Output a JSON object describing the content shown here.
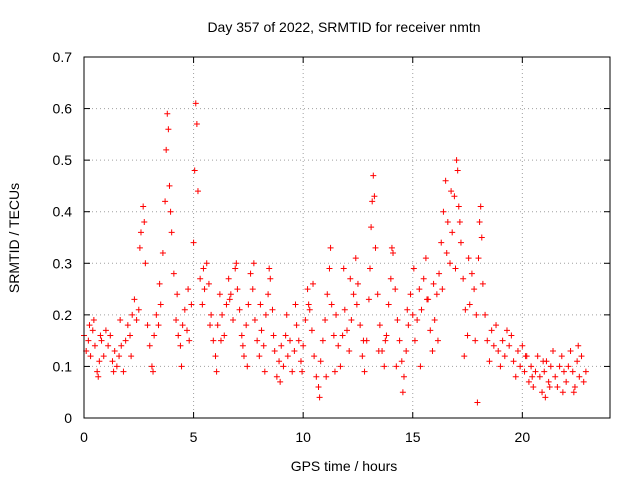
{
  "chart_data": {
    "type": "scatter",
    "title": "Day 357 of 2022, SRMTID for receiver nmtn",
    "xlabel": "GPS time / hours",
    "ylabel": "SRMTID / TECUs",
    "xlim": [
      0,
      24
    ],
    "ylim": [
      0,
      0.7
    ],
    "xticks": [
      0,
      5,
      10,
      15,
      20
    ],
    "yticks": [
      0,
      0.1,
      0.2,
      0.3,
      0.4,
      0.5,
      0.6,
      0.7
    ],
    "grid": true,
    "marker": "+",
    "color": "#ff0000",
    "series": [
      {
        "name": "SRMTID",
        "points": [
          [
            0.0,
            0.16
          ],
          [
            0.1,
            0.13
          ],
          [
            0.2,
            0.15
          ],
          [
            0.3,
            0.12
          ],
          [
            0.4,
            0.17
          ],
          [
            0.5,
            0.14
          ],
          [
            0.6,
            0.09
          ],
          [
            0.7,
            0.11
          ],
          [
            0.8,
            0.15
          ],
          [
            0.9,
            0.12
          ],
          [
            1.0,
            0.17
          ],
          [
            1.1,
            0.14
          ],
          [
            1.2,
            0.16
          ],
          [
            1.3,
            0.11
          ],
          [
            1.4,
            0.13
          ],
          [
            1.5,
            0.1
          ],
          [
            1.6,
            0.12
          ],
          [
            1.7,
            0.14
          ],
          [
            1.8,
            0.09
          ],
          [
            1.9,
            0.15
          ],
          [
            2.0,
            0.18
          ],
          [
            2.1,
            0.16
          ],
          [
            2.2,
            0.2
          ],
          [
            2.3,
            0.23
          ],
          [
            2.4,
            0.19
          ],
          [
            2.5,
            0.21
          ],
          [
            2.6,
            0.36
          ],
          [
            2.7,
            0.41
          ],
          [
            2.8,
            0.3
          ],
          [
            2.9,
            0.18
          ],
          [
            3.0,
            0.14
          ],
          [
            3.1,
            0.1
          ],
          [
            3.2,
            0.16
          ],
          [
            3.3,
            0.2
          ],
          [
            3.4,
            0.18
          ],
          [
            3.5,
            0.22
          ],
          [
            3.6,
            0.32
          ],
          [
            3.7,
            0.42
          ],
          [
            3.75,
            0.52
          ],
          [
            3.8,
            0.59
          ],
          [
            3.85,
            0.56
          ],
          [
            3.9,
            0.45
          ],
          [
            3.95,
            0.4
          ],
          [
            4.0,
            0.36
          ],
          [
            4.1,
            0.28
          ],
          [
            4.2,
            0.19
          ],
          [
            4.3,
            0.16
          ],
          [
            4.4,
            0.14
          ],
          [
            4.5,
            0.18
          ],
          [
            4.6,
            0.21
          ],
          [
            4.7,
            0.17
          ],
          [
            4.8,
            0.15
          ],
          [
            4.9,
            0.22
          ],
          [
            5.0,
            0.34
          ],
          [
            5.05,
            0.48
          ],
          [
            5.1,
            0.61
          ],
          [
            5.15,
            0.57
          ],
          [
            5.2,
            0.44
          ],
          [
            5.3,
            0.27
          ],
          [
            5.4,
            0.22
          ],
          [
            5.5,
            0.25
          ],
          [
            5.6,
            0.3
          ],
          [
            5.7,
            0.26
          ],
          [
            5.8,
            0.2
          ],
          [
            5.9,
            0.15
          ],
          [
            6.0,
            0.12
          ],
          [
            6.1,
            0.18
          ],
          [
            6.2,
            0.24
          ],
          [
            6.3,
            0.2
          ],
          [
            6.4,
            0.16
          ],
          [
            6.5,
            0.22
          ],
          [
            6.6,
            0.27
          ],
          [
            6.7,
            0.24
          ],
          [
            6.8,
            0.19
          ],
          [
            6.9,
            0.29
          ],
          [
            7.0,
            0.25
          ],
          [
            7.1,
            0.21
          ],
          [
            7.2,
            0.16
          ],
          [
            7.3,
            0.12
          ],
          [
            7.4,
            0.18
          ],
          [
            7.5,
            0.22
          ],
          [
            7.6,
            0.28
          ],
          [
            7.7,
            0.25
          ],
          [
            7.8,
            0.19
          ],
          [
            7.9,
            0.15
          ],
          [
            8.0,
            0.12
          ],
          [
            8.1,
            0.17
          ],
          [
            8.2,
            0.14
          ],
          [
            8.3,
            0.2
          ],
          [
            8.4,
            0.24
          ],
          [
            8.5,
            0.27
          ],
          [
            8.6,
            0.21
          ],
          [
            8.7,
            0.13
          ],
          [
            8.8,
            0.08
          ],
          [
            8.9,
            0.11
          ],
          [
            9.0,
            0.14
          ],
          [
            9.1,
            0.1
          ],
          [
            9.2,
            0.16
          ],
          [
            9.3,
            0.12
          ],
          [
            9.4,
            0.15
          ],
          [
            9.5,
            0.09
          ],
          [
            9.6,
            0.13
          ],
          [
            9.7,
            0.18
          ],
          [
            9.8,
            0.15
          ],
          [
            9.9,
            0.11
          ],
          [
            10.0,
            0.14
          ],
          [
            10.1,
            0.19
          ],
          [
            10.2,
            0.25
          ],
          [
            10.3,
            0.21
          ],
          [
            10.4,
            0.17
          ],
          [
            10.5,
            0.12
          ],
          [
            10.6,
            0.08
          ],
          [
            10.7,
            0.06
          ],
          [
            10.8,
            0.11
          ],
          [
            10.9,
            0.15
          ],
          [
            11.0,
            0.19
          ],
          [
            11.1,
            0.24
          ],
          [
            11.2,
            0.29
          ],
          [
            11.3,
            0.22
          ],
          [
            11.4,
            0.16
          ],
          [
            11.5,
            0.2
          ],
          [
            11.6,
            0.14
          ],
          [
            11.7,
            0.1
          ],
          [
            11.8,
            0.16
          ],
          [
            11.9,
            0.21
          ],
          [
            12.0,
            0.17
          ],
          [
            12.1,
            0.13
          ],
          [
            12.2,
            0.19
          ],
          [
            12.3,
            0.24
          ],
          [
            12.4,
            0.31
          ],
          [
            12.5,
            0.26
          ],
          [
            12.6,
            0.18
          ],
          [
            12.7,
            0.12
          ],
          [
            12.8,
            0.09
          ],
          [
            12.9,
            0.15
          ],
          [
            13.0,
            0.23
          ],
          [
            13.1,
            0.37
          ],
          [
            13.2,
            0.47
          ],
          [
            13.25,
            0.43
          ],
          [
            13.3,
            0.33
          ],
          [
            13.4,
            0.24
          ],
          [
            13.5,
            0.18
          ],
          [
            13.6,
            0.13
          ],
          [
            13.7,
            0.1
          ],
          [
            13.8,
            0.16
          ],
          [
            13.9,
            0.22
          ],
          [
            14.0,
            0.27
          ],
          [
            14.1,
            0.32
          ],
          [
            14.2,
            0.25
          ],
          [
            14.3,
            0.19
          ],
          [
            14.4,
            0.15
          ],
          [
            14.5,
            0.11
          ],
          [
            14.6,
            0.08
          ],
          [
            14.7,
            0.13
          ],
          [
            14.8,
            0.18
          ],
          [
            14.9,
            0.24
          ],
          [
            15.0,
            0.2
          ],
          [
            15.1,
            0.15
          ],
          [
            15.2,
            0.19
          ],
          [
            15.3,
            0.25
          ],
          [
            15.4,
            0.21
          ],
          [
            15.5,
            0.27
          ],
          [
            15.6,
            0.31
          ],
          [
            15.7,
            0.23
          ],
          [
            15.8,
            0.17
          ],
          [
            15.9,
            0.13
          ],
          [
            16.0,
            0.19
          ],
          [
            16.1,
            0.24
          ],
          [
            16.2,
            0.28
          ],
          [
            16.3,
            0.34
          ],
          [
            16.4,
            0.4
          ],
          [
            16.5,
            0.46
          ],
          [
            16.6,
            0.38
          ],
          [
            16.7,
            0.3
          ],
          [
            16.8,
            0.36
          ],
          [
            16.9,
            0.43
          ],
          [
            17.0,
            0.5
          ],
          [
            17.05,
            0.48
          ],
          [
            17.1,
            0.41
          ],
          [
            17.2,
            0.34
          ],
          [
            17.3,
            0.27
          ],
          [
            17.4,
            0.21
          ],
          [
            17.5,
            0.16
          ],
          [
            17.6,
            0.22
          ],
          [
            17.7,
            0.28
          ],
          [
            17.8,
            0.25
          ],
          [
            17.9,
            0.2
          ],
          [
            18.0,
            0.31
          ],
          [
            18.05,
            0.38
          ],
          [
            18.1,
            0.41
          ],
          [
            18.15,
            0.35
          ],
          [
            18.2,
            0.26
          ],
          [
            18.3,
            0.2
          ],
          [
            18.4,
            0.15
          ],
          [
            18.5,
            0.11
          ],
          [
            18.6,
            0.17
          ],
          [
            18.7,
            0.14
          ],
          [
            18.8,
            0.18
          ],
          [
            18.9,
            0.13
          ],
          [
            19.0,
            0.1
          ],
          [
            19.1,
            0.15
          ],
          [
            19.2,
            0.12
          ],
          [
            19.3,
            0.17
          ],
          [
            19.4,
            0.14
          ],
          [
            19.5,
            0.16
          ],
          [
            19.6,
            0.11
          ],
          [
            19.7,
            0.08
          ],
          [
            19.8,
            0.13
          ],
          [
            19.9,
            0.1
          ],
          [
            20.0,
            0.14
          ],
          [
            20.1,
            0.09
          ],
          [
            20.2,
            0.12
          ],
          [
            20.3,
            0.07
          ],
          [
            20.4,
            0.1
          ],
          [
            20.5,
            0.06
          ],
          [
            20.6,
            0.09
          ],
          [
            20.7,
            0.12
          ],
          [
            20.8,
            0.08
          ],
          [
            20.9,
            0.05
          ],
          [
            21.0,
            0.09
          ],
          [
            21.1,
            0.11
          ],
          [
            21.2,
            0.07
          ],
          [
            21.3,
            0.1
          ],
          [
            21.4,
            0.13
          ],
          [
            21.5,
            0.08
          ],
          [
            21.6,
            0.06
          ],
          [
            21.7,
            0.1
          ],
          [
            21.8,
            0.12
          ],
          [
            21.9,
            0.09
          ],
          [
            22.0,
            0.07
          ],
          [
            22.1,
            0.1
          ],
          [
            22.2,
            0.13
          ],
          [
            22.3,
            0.09
          ],
          [
            22.4,
            0.06
          ],
          [
            22.5,
            0.11
          ],
          [
            22.6,
            0.08
          ],
          [
            22.7,
            0.12
          ],
          [
            22.8,
            0.07
          ],
          [
            22.9,
            0.09
          ],
          [
            17.95,
            0.03
          ],
          [
            20.15,
            0.12
          ],
          [
            20.45,
            0.08
          ],
          [
            21.05,
            0.04
          ],
          [
            21.25,
            0.06
          ],
          [
            20.95,
            0.11
          ],
          [
            21.85,
            0.05
          ],
          [
            22.55,
            0.14
          ],
          [
            22.35,
            0.05
          ],
          [
            0.45,
            0.19
          ],
          [
            0.65,
            0.08
          ],
          [
            0.25,
            0.18
          ],
          [
            0.75,
            0.16
          ],
          [
            1.35,
            0.09
          ],
          [
            1.65,
            0.19
          ],
          [
            2.15,
            0.12
          ],
          [
            2.55,
            0.33
          ],
          [
            2.75,
            0.38
          ],
          [
            3.15,
            0.09
          ],
          [
            3.45,
            0.26
          ],
          [
            4.25,
            0.24
          ],
          [
            4.45,
            0.1
          ],
          [
            4.75,
            0.25
          ],
          [
            5.45,
            0.29
          ],
          [
            5.75,
            0.18
          ],
          [
            6.05,
            0.09
          ],
          [
            6.25,
            0.15
          ],
          [
            6.65,
            0.23
          ],
          [
            6.95,
            0.3
          ],
          [
            7.25,
            0.14
          ],
          [
            7.45,
            0.1
          ],
          [
            7.75,
            0.3
          ],
          [
            8.05,
            0.22
          ],
          [
            8.25,
            0.09
          ],
          [
            8.45,
            0.29
          ],
          [
            8.65,
            0.16
          ],
          [
            8.95,
            0.07
          ],
          [
            9.25,
            0.2
          ],
          [
            9.65,
            0.22
          ],
          [
            9.95,
            0.09
          ],
          [
            10.25,
            0.22
          ],
          [
            10.45,
            0.26
          ],
          [
            10.75,
            0.04
          ],
          [
            11.05,
            0.08
          ],
          [
            11.25,
            0.33
          ],
          [
            11.45,
            0.09
          ],
          [
            11.85,
            0.29
          ],
          [
            12.15,
            0.27
          ],
          [
            12.45,
            0.22
          ],
          [
            12.75,
            0.15
          ],
          [
            13.05,
            0.29
          ],
          [
            13.15,
            0.42
          ],
          [
            13.45,
            0.13
          ],
          [
            13.75,
            0.15
          ],
          [
            14.05,
            0.33
          ],
          [
            14.25,
            0.1
          ],
          [
            14.55,
            0.05
          ],
          [
            14.75,
            0.21
          ],
          [
            15.05,
            0.29
          ],
          [
            15.35,
            0.1
          ],
          [
            15.65,
            0.23
          ],
          [
            15.95,
            0.26
          ],
          [
            16.15,
            0.15
          ],
          [
            16.35,
            0.25
          ],
          [
            16.55,
            0.32
          ],
          [
            16.75,
            0.44
          ],
          [
            16.95,
            0.29
          ],
          [
            17.15,
            0.38
          ],
          [
            17.35,
            0.12
          ],
          [
            17.55,
            0.31
          ],
          [
            17.85,
            0.15
          ]
        ]
      }
    ]
  }
}
